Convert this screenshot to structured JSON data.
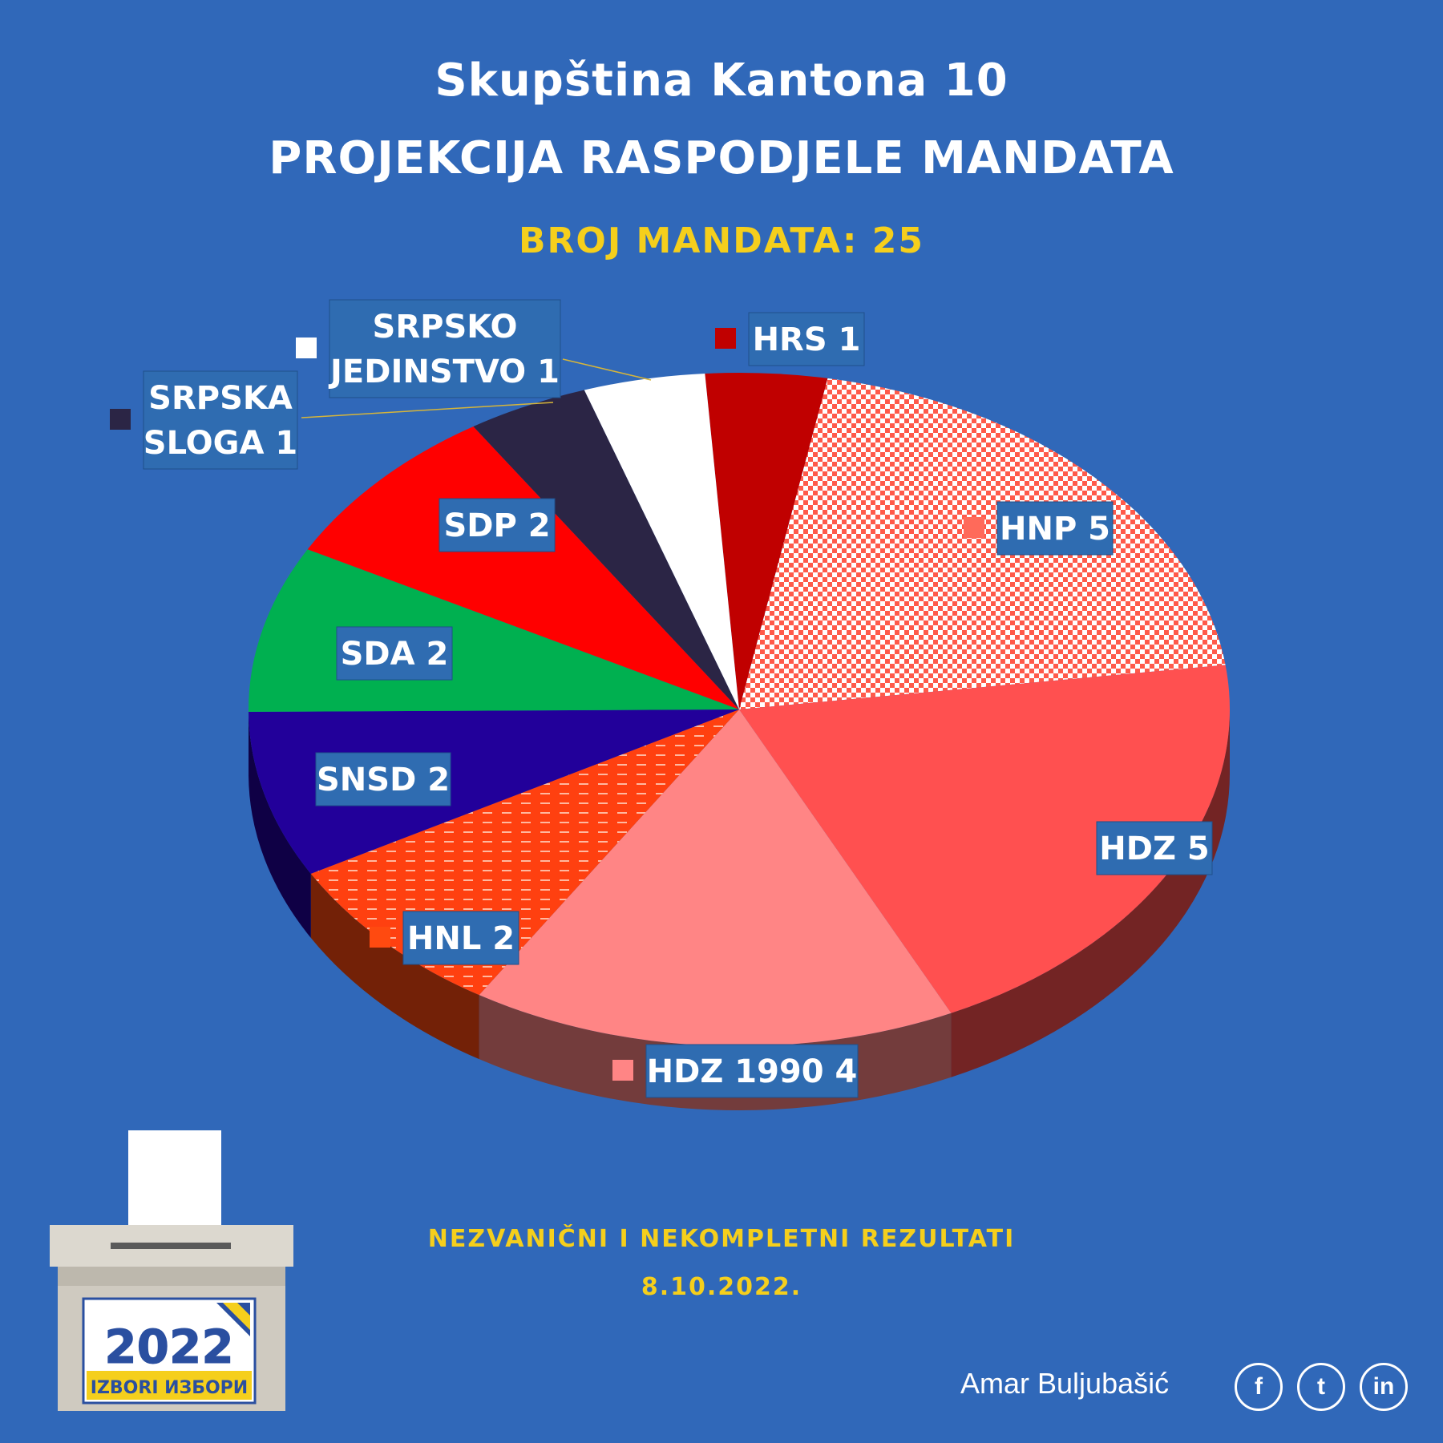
{
  "header": {
    "title": "Skupština Kantona 10",
    "subtitle": "PROJEKCIJA RASPODJELE MANDATA",
    "total_label": "BROJ MANDATA: 25"
  },
  "chart_data": {
    "type": "pie",
    "title": "PROJEKCIJA RASPODJELE MANDATA",
    "total": 25,
    "slices": [
      {
        "party": "HRS",
        "value": 1,
        "label": "HRS 1",
        "color": "#c00000"
      },
      {
        "party": "HNP",
        "value": 5,
        "label": "HNP 5",
        "color": "#ff6a5a"
      },
      {
        "party": "HDZ",
        "value": 5,
        "label": "HDZ 5",
        "color": "#ff5050"
      },
      {
        "party": "HDZ 1990",
        "value": 4,
        "label": "HDZ 1990 4",
        "color": "#ff8585"
      },
      {
        "party": "HNL",
        "value": 2,
        "label": "HNL 2",
        "color": "#ff4a10"
      },
      {
        "party": "SNSD",
        "value": 2,
        "label": "SNSD 2",
        "color": "#22009a"
      },
      {
        "party": "SDA",
        "value": 2,
        "label": "SDA 2",
        "color": "#00b050"
      },
      {
        "party": "SDP",
        "value": 2,
        "label": "SDP 2",
        "color": "#ff0000"
      },
      {
        "party": "SRPSKA SLOGA",
        "value": 1,
        "label_lines": [
          "SRPSKA",
          "SLOGA 1"
        ],
        "color": "#2b2545"
      },
      {
        "party": "SRPSKO JEDINSTVO",
        "value": 1,
        "label_lines": [
          "SRPSKO",
          "JEDINSTVO 1"
        ],
        "color": "#ffffff"
      }
    ]
  },
  "footer": {
    "note": "NEZVANIČNI I NEKOMPLETNI REZULTATI",
    "date": "8.10.2022."
  },
  "credits": {
    "author": "Amar Buljubašić",
    "social_icons": [
      "facebook-icon",
      "tumblr-icon",
      "linkedin-icon"
    ],
    "social_glyphs": [
      "f",
      "t",
      "in"
    ]
  },
  "logo": {
    "year": "2022",
    "text": "IZBORI ИЗБОРИ"
  }
}
